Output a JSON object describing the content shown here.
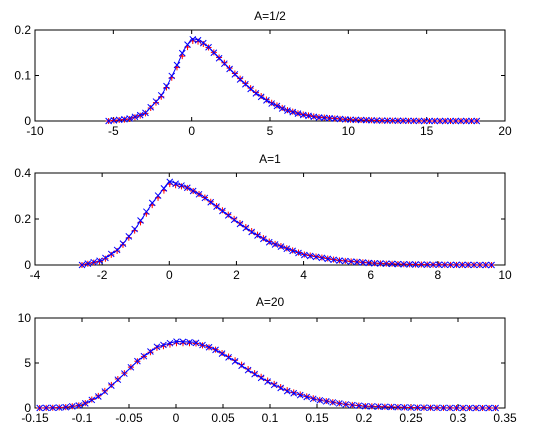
{
  "chart_data": [
    {
      "type": "line",
      "title": "A=1/2",
      "xlim": [
        -10,
        20
      ],
      "ylim": [
        0,
        0.2
      ],
      "xticks": [
        -10,
        -5,
        0,
        5,
        10,
        15,
        20
      ],
      "xtick_labels": [
        "-10",
        "-5",
        "0",
        "5",
        "10",
        "15",
        "20"
      ],
      "yticks": [
        0,
        0.1,
        0.2
      ],
      "ytick_labels": [
        "0",
        "0.1",
        "0.2"
      ],
      "grid": false,
      "series": [
        {
          "style": "blue solid line",
          "color": "#0000ff",
          "x": [
            -5.3,
            -4,
            -3,
            -2,
            -1.5,
            -1,
            -0.5,
            0,
            0.5,
            1,
            1.5,
            2,
            3,
            4,
            5,
            6,
            7,
            8,
            10,
            12,
            15,
            18.2
          ],
          "y": [
            0.0,
            0.005,
            0.016,
            0.052,
            0.082,
            0.117,
            0.156,
            0.181,
            0.178,
            0.165,
            0.148,
            0.13,
            0.095,
            0.064,
            0.041,
            0.024,
            0.014,
            0.008,
            0.003,
            0.001,
            0.0,
            0.0
          ]
        },
        {
          "style": "red + markers",
          "color": "#ff0000",
          "x": [
            -5.3,
            -4,
            -3,
            -2,
            -1.5,
            -1,
            -0.5,
            0,
            0.5,
            1,
            1.5,
            2,
            3,
            4,
            5,
            6,
            7,
            8,
            10,
            12,
            15,
            18.2
          ],
          "y": [
            0.0,
            0.004,
            0.015,
            0.05,
            0.08,
            0.113,
            0.15,
            0.176,
            0.174,
            0.164,
            0.148,
            0.131,
            0.096,
            0.065,
            0.042,
            0.025,
            0.015,
            0.009,
            0.003,
            0.001,
            0.0,
            0.0
          ]
        },
        {
          "style": "blue x markers",
          "color": "#0000ff",
          "x": [
            -5.3,
            -4,
            -3,
            -2,
            -1.5,
            -1,
            -0.5,
            0,
            0.5,
            1,
            1.5,
            2,
            3,
            4,
            5,
            6,
            7,
            8,
            10,
            12,
            15,
            18.2
          ],
          "y": [
            0.0,
            0.005,
            0.016,
            0.053,
            0.083,
            0.118,
            0.157,
            0.18,
            0.177,
            0.165,
            0.147,
            0.129,
            0.094,
            0.063,
            0.04,
            0.024,
            0.014,
            0.008,
            0.003,
            0.001,
            0.0,
            0.0
          ]
        }
      ]
    },
    {
      "type": "line",
      "title": "A=1",
      "xlim": [
        -4,
        10
      ],
      "ylim": [
        0,
        0.4
      ],
      "xticks": [
        -4,
        -2,
        0,
        2,
        4,
        6,
        8,
        10
      ],
      "xtick_labels": [
        "-4",
        "-2",
        "0",
        "2",
        "4",
        "6",
        "8",
        "10"
      ],
      "yticks": [
        0,
        0.2,
        0.4
      ],
      "ytick_labels": [
        "0",
        "0.2",
        "0.4"
      ],
      "grid": false,
      "series": [
        {
          "style": "blue solid line",
          "color": "#0000ff",
          "x": [
            -2.6,
            -2,
            -1.5,
            -1,
            -0.5,
            0,
            0.5,
            1,
            1.5,
            2,
            2.5,
            3,
            4,
            5,
            6,
            7,
            8,
            9.6
          ],
          "y": [
            0.0,
            0.02,
            0.07,
            0.16,
            0.27,
            0.365,
            0.34,
            0.3,
            0.245,
            0.19,
            0.14,
            0.098,
            0.045,
            0.02,
            0.008,
            0.003,
            0.001,
            0.0
          ]
        },
        {
          "style": "red + markers",
          "color": "#ff0000",
          "x": [
            -2.6,
            -2,
            -1.5,
            -1,
            -0.5,
            0,
            0.5,
            1,
            1.5,
            2,
            2.5,
            3,
            4,
            5,
            6,
            7,
            8,
            9.6
          ],
          "y": [
            0.0,
            0.018,
            0.066,
            0.155,
            0.262,
            0.352,
            0.338,
            0.3,
            0.247,
            0.193,
            0.143,
            0.1,
            0.046,
            0.021,
            0.009,
            0.003,
            0.001,
            0.0
          ]
        },
        {
          "style": "blue x markers",
          "color": "#0000ff",
          "x": [
            -2.6,
            -2,
            -1.5,
            -1,
            -0.5,
            0,
            0.5,
            1,
            1.5,
            2,
            2.5,
            3,
            4,
            5,
            6,
            7,
            8,
            9.6
          ],
          "y": [
            0.0,
            0.021,
            0.071,
            0.162,
            0.272,
            0.362,
            0.339,
            0.298,
            0.244,
            0.189,
            0.139,
            0.097,
            0.044,
            0.02,
            0.008,
            0.003,
            0.001,
            0.0
          ]
        }
      ]
    },
    {
      "type": "line",
      "title": "A=20",
      "xlim": [
        -0.15,
        0.35
      ],
      "ylim": [
        0,
        10
      ],
      "xticks": [
        -0.15,
        -0.1,
        -0.05,
        0,
        0.05,
        0.1,
        0.15,
        0.2,
        0.25,
        0.3,
        0.35
      ],
      "xtick_labels": [
        "-0.15",
        "-0.1",
        "-0.05",
        "0",
        "0.05",
        "0.1",
        "0.15",
        "0.2",
        "0.25",
        "0.3",
        "0.35"
      ],
      "yticks": [
        0,
        5,
        10
      ],
      "ytick_labels": [
        "0",
        "5",
        "10"
      ],
      "grid": false,
      "series": [
        {
          "style": "blue solid line",
          "color": "#0000ff",
          "x": [
            -0.145,
            -0.12,
            -0.1,
            -0.08,
            -0.06,
            -0.04,
            -0.02,
            0,
            0.02,
            0.04,
            0.06,
            0.08,
            0.1,
            0.12,
            0.15,
            0.18,
            0.2,
            0.25,
            0.3,
            0.34
          ],
          "y": [
            0.0,
            0.05,
            0.3,
            1.4,
            3.3,
            5.3,
            6.8,
            7.4,
            7.3,
            6.6,
            5.4,
            4.0,
            2.8,
            1.8,
            0.9,
            0.4,
            0.2,
            0.05,
            0.0,
            0.0
          ]
        },
        {
          "style": "red + markers",
          "color": "#ff0000",
          "x": [
            -0.145,
            -0.12,
            -0.1,
            -0.08,
            -0.06,
            -0.04,
            -0.02,
            0,
            0.02,
            0.04,
            0.06,
            0.08,
            0.1,
            0.12,
            0.15,
            0.18,
            0.2,
            0.25,
            0.3,
            0.34
          ],
          "y": [
            0.0,
            0.06,
            0.34,
            1.5,
            3.4,
            5.3,
            6.7,
            7.2,
            7.2,
            6.6,
            5.5,
            4.1,
            2.9,
            1.9,
            0.95,
            0.42,
            0.22,
            0.05,
            0.0,
            0.0
          ]
        },
        {
          "style": "blue x markers",
          "color": "#0000ff",
          "x": [
            -0.145,
            -0.12,
            -0.1,
            -0.08,
            -0.06,
            -0.04,
            -0.02,
            0,
            0.02,
            0.04,
            0.06,
            0.08,
            0.1,
            0.12,
            0.15,
            0.18,
            0.2,
            0.25,
            0.3,
            0.34
          ],
          "y": [
            0.0,
            0.05,
            0.32,
            1.42,
            3.32,
            5.32,
            6.82,
            7.38,
            7.28,
            6.58,
            5.38,
            3.98,
            2.78,
            1.79,
            0.9,
            0.4,
            0.2,
            0.05,
            0.0,
            0.0
          ]
        }
      ]
    }
  ]
}
